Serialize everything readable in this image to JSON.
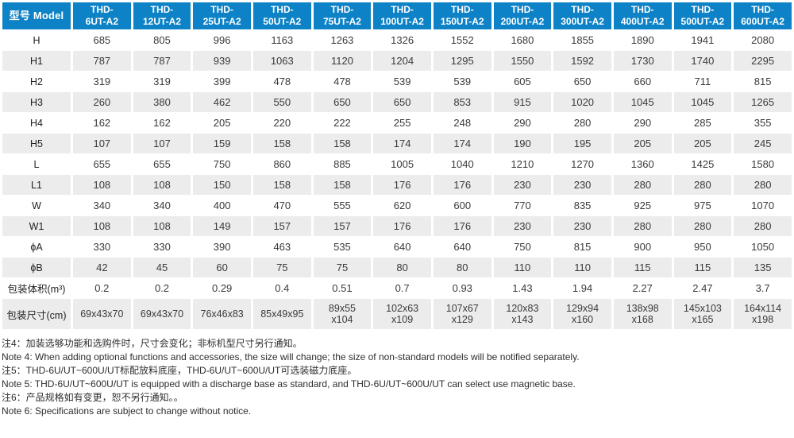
{
  "colors": {
    "header_bg": "#0e82c6",
    "header_text": "#ffffff",
    "stripe_bg": "#ececec",
    "body_text": "#3a3a3a"
  },
  "table": {
    "model_label": "型号 Model",
    "columns": [
      "THD-\n6UT-A2",
      "THD-\n12UT-A2",
      "THD-\n25UT-A2",
      "THD-\n50UT-A2",
      "THD-\n75UT-A2",
      "THD-\n100UT-A2",
      "THD-\n150UT-A2",
      "THD-\n200UT-A2",
      "THD-\n300UT-A2",
      "THD-\n400UT-A2",
      "THD-\n500UT-A2",
      "THD-\n600UT-A2"
    ],
    "rows": [
      {
        "label": "H",
        "values": [
          "685",
          "805",
          "996",
          "1163",
          "1263",
          "1326",
          "1552",
          "1680",
          "1855",
          "1890",
          "1941",
          "2080"
        ]
      },
      {
        "label": "H1",
        "values": [
          "787",
          "787",
          "939",
          "1063",
          "1120",
          "1204",
          "1295",
          "1550",
          "1592",
          "1730",
          "1740",
          "2295"
        ]
      },
      {
        "label": "H2",
        "values": [
          "319",
          "319",
          "399",
          "478",
          "478",
          "539",
          "539",
          "605",
          "650",
          "660",
          "711",
          "815"
        ]
      },
      {
        "label": "H3",
        "values": [
          "260",
          "380",
          "462",
          "550",
          "650",
          "650",
          "853",
          "915",
          "1020",
          "1045",
          "1045",
          "1265"
        ]
      },
      {
        "label": "H4",
        "values": [
          "162",
          "162",
          "205",
          "220",
          "222",
          "255",
          "248",
          "290",
          "280",
          "290",
          "285",
          "355"
        ]
      },
      {
        "label": "H5",
        "values": [
          "107",
          "107",
          "159",
          "158",
          "158",
          "174",
          "174",
          "190",
          "195",
          "205",
          "205",
          "245"
        ]
      },
      {
        "label": "L",
        "values": [
          "655",
          "655",
          "750",
          "860",
          "885",
          "1005",
          "1040",
          "1210",
          "1270",
          "1360",
          "1425",
          "1580"
        ]
      },
      {
        "label": "L1",
        "values": [
          "108",
          "108",
          "150",
          "158",
          "158",
          "176",
          "176",
          "230",
          "230",
          "280",
          "280",
          "280"
        ]
      },
      {
        "label": "W",
        "values": [
          "340",
          "340",
          "400",
          "470",
          "555",
          "620",
          "600",
          "770",
          "835",
          "925",
          "975",
          "1070"
        ]
      },
      {
        "label": "W1",
        "values": [
          "108",
          "108",
          "149",
          "157",
          "157",
          "176",
          "176",
          "230",
          "230",
          "280",
          "280",
          "280"
        ]
      },
      {
        "label": "ϕA",
        "values": [
          "330",
          "330",
          "390",
          "463",
          "535",
          "640",
          "640",
          "750",
          "815",
          "900",
          "950",
          "1050"
        ]
      },
      {
        "label": "ϕB",
        "values": [
          "42",
          "45",
          "60",
          "75",
          "75",
          "80",
          "80",
          "110",
          "110",
          "115",
          "115",
          "135"
        ]
      },
      {
        "label": "包装体积(m³)",
        "values": [
          "0.2",
          "0.2",
          "0.29",
          "0.4",
          "0.51",
          "0.7",
          "0.93",
          "1.43",
          "1.94",
          "2.27",
          "2.47",
          "3.7"
        ]
      },
      {
        "label": "包装尺寸(cm)",
        "values": [
          "69x43x70",
          "69x43x70",
          "76x46x83",
          "85x49x95",
          "89x55\nx104",
          "102x63\nx109",
          "107x67\nx129",
          "120x83\nx143",
          "129x94\nx160",
          "138x98\nx168",
          "145x103\nx165",
          "164x114\nx198"
        ]
      }
    ]
  },
  "notes": [
    "注4：加装选够功能和选购件时，尺寸会变化；非标机型尺寸另行通知。",
    "Note 4: When adding optional functions and accessories, the size will change; the size of non-standard models will be notified separately.",
    "注5：THD-6U/UT~600U/UT标配放料底座，THD-6U/UT~600U/UT可选装磁力底座。",
    "Note 5: THD-6U/UT~600U/UT is equipped with a discharge base as standard, and THD-6U/UT~600U/UT can select use magnetic base.",
    "注6：产品规格如有变更，恕不另行通知。。",
    "Note 6: Specifications are subject to change without notice."
  ]
}
